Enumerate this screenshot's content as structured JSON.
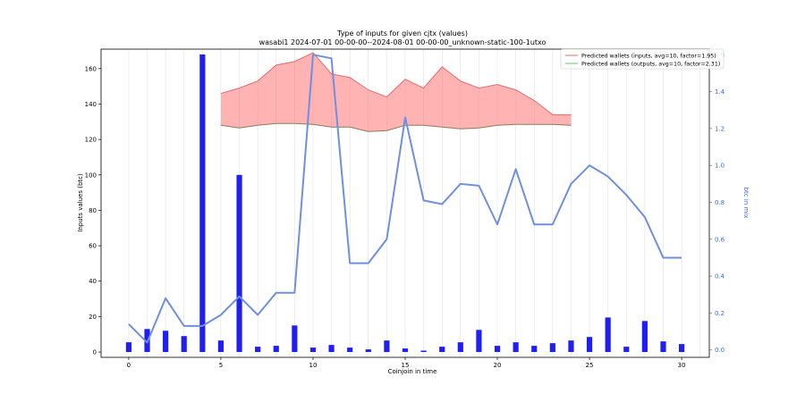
{
  "chart_data": {
    "type": "bar",
    "title": "Type of inputs for given cjtx (values)",
    "subtitle": "wasabi1 2024-07-01 00-00-00--2024-08-01 00-00-00_unknown-static-100-1utxo",
    "xlabel": "Coinjoin in time",
    "ylabel": "Inputs values (btc)",
    "ylabel_right": "btc in mix",
    "xlim": [
      -1.5,
      31.5
    ],
    "ylim": [
      -3,
      171
    ],
    "ylim_right": [
      -0.04,
      1.63
    ],
    "grid": "vertical",
    "legend_placement": "top-right",
    "x_ticks": [
      0,
      5,
      10,
      15,
      20,
      25,
      30
    ],
    "x_tick_labels": [
      "0",
      "5",
      "10",
      "15",
      "20",
      "25",
      "30"
    ],
    "y_ticks": [
      0,
      20,
      40,
      60,
      80,
      100,
      120,
      140,
      160
    ],
    "y_tick_labels": [
      "0",
      "20",
      "40",
      "60",
      "80",
      "100",
      "120",
      "140",
      "160"
    ],
    "y_ticks_right": [
      0.0,
      0.2,
      0.4,
      0.6,
      0.8,
      1.0,
      1.2,
      1.4,
      1.6
    ],
    "y_tick_labels_right": [
      "0.0",
      "0.2",
      "0.4",
      "0.6",
      "0.8",
      "1.0",
      "1.2",
      "1.4",
      "1.6"
    ],
    "bars": {
      "color": "#1f1ff5",
      "x": [
        0,
        1,
        2,
        3,
        4,
        5,
        6,
        7,
        8,
        9,
        10,
        11,
        12,
        13,
        14,
        15,
        16,
        17,
        18,
        19,
        20,
        21,
        22,
        23,
        24,
        25,
        26,
        27,
        28,
        29,
        30
      ],
      "values": [
        5.5,
        13,
        12,
        9,
        168,
        6.5,
        100,
        3,
        3.5,
        15,
        2.5,
        4,
        2.5,
        1.5,
        6.5,
        2,
        0.8,
        3,
        5.5,
        12.5,
        3.5,
        5.5,
        3.5,
        5,
        6.5,
        8.5,
        19.5,
        3,
        17.5,
        6,
        4.5
      ]
    },
    "series": [
      {
        "name": "Predicted wallets (inputs, avg=10, factor=1.95)",
        "color": "#e8696b",
        "x": [
          5,
          6,
          7,
          8,
          9,
          10,
          11,
          12,
          13,
          14,
          15,
          16,
          17,
          18,
          19,
          20,
          21,
          22,
          23,
          24
        ],
        "values": [
          146,
          149,
          153,
          162,
          164,
          169,
          157,
          155,
          148,
          144,
          154,
          149,
          161,
          153,
          149,
          151,
          148,
          142,
          134,
          134
        ]
      },
      {
        "name": "Predicted wallets (outputs, avg=10, factor=2.31)",
        "color": "#8b7d5a",
        "x": [
          5,
          6,
          7,
          8,
          9,
          10,
          11,
          12,
          13,
          14,
          15,
          16,
          17,
          18,
          19,
          20,
          21,
          22,
          23,
          24
        ],
        "values": [
          128,
          126.5,
          128,
          129,
          129,
          128.5,
          127,
          127,
          124.5,
          125,
          128,
          128,
          127,
          126,
          126.5,
          128,
          128.5,
          128.5,
          128.5,
          128
        ]
      }
    ],
    "fill_between": {
      "color": "#ff8080",
      "opacity": 0.6
    },
    "line_right": {
      "name": "btc in mix",
      "color": "#6f8fdf",
      "x": [
        0,
        1,
        2,
        3,
        4,
        5,
        6,
        7,
        8,
        9,
        10,
        11,
        12,
        13,
        14,
        15,
        16,
        17,
        18,
        19,
        20,
        21,
        22,
        23,
        24,
        25,
        26,
        27,
        28,
        29,
        30
      ],
      "values": [
        0.14,
        0.04,
        0.28,
        0.13,
        0.13,
        0.19,
        0.29,
        0.19,
        0.31,
        0.31,
        1.6,
        1.58,
        0.47,
        0.47,
        0.6,
        1.26,
        0.81,
        0.79,
        0.9,
        0.89,
        0.68,
        0.98,
        0.68,
        0.68,
        0.9,
        1.0,
        0.94,
        0.84,
        0.72,
        0.5,
        0.5
      ]
    }
  }
}
